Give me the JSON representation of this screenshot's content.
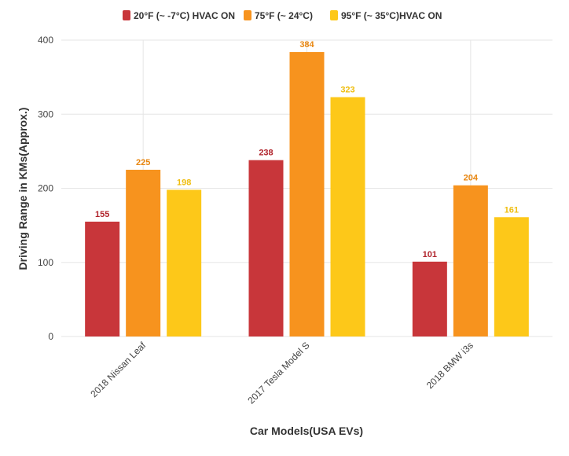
{
  "chart_data": {
    "type": "bar",
    "title": "",
    "xlabel": "Car Models(USA EVs)",
    "ylabel": "Driving Range in KMs(Approx.)",
    "categories": [
      "2018 Nissan Leaf",
      "2017 Tesla Model S",
      "2018 BMW i3s"
    ],
    "series": [
      {
        "name": "20°F (~ -7°C) HVAC ON",
        "values": [
          155,
          238,
          101
        ],
        "color": "#c8363a",
        "label_color": "#b0222a"
      },
      {
        "name": "75°F (~ 24°C)",
        "values": [
          225,
          384,
          204
        ],
        "color": "#f7931e",
        "label_color": "#e8860f"
      },
      {
        "name": "95°F (~ 35°C)HVAC ON",
        "values": [
          198,
          323,
          161
        ],
        "color": "#fdc819",
        "label_color": "#efbd0e"
      }
    ],
    "ylim": [
      0,
      400
    ],
    "yticks": [
      0,
      100,
      200,
      300,
      400
    ],
    "grid": true,
    "legend_position": "top-center"
  }
}
